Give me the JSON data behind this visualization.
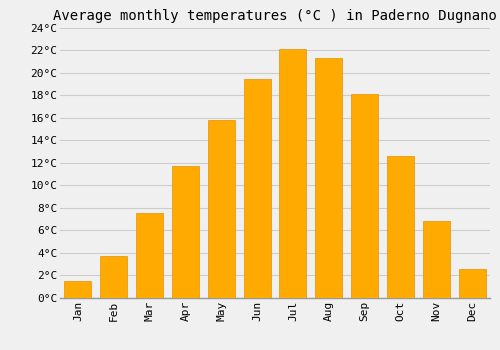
{
  "title": "Average monthly temperatures (°C ) in Paderno Dugnano",
  "months": [
    "Jan",
    "Feb",
    "Mar",
    "Apr",
    "May",
    "Jun",
    "Jul",
    "Aug",
    "Sep",
    "Oct",
    "Nov",
    "Dec"
  ],
  "values": [
    1.5,
    3.7,
    7.5,
    11.7,
    15.8,
    19.5,
    22.1,
    21.3,
    18.1,
    12.6,
    6.8,
    2.5
  ],
  "bar_color": "#FFAA00",
  "bar_edge_color": "#E89000",
  "background_color": "#F0F0F0",
  "grid_color": "#CCCCCC",
  "ylim": [
    0,
    24
  ],
  "ytick_step": 2,
  "title_fontsize": 10,
  "tick_fontsize": 8,
  "font_family": "monospace"
}
